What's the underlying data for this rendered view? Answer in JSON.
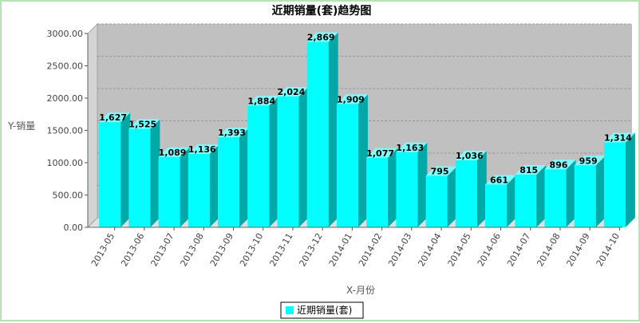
{
  "chart_data": {
    "type": "bar",
    "title": "近期销量(套)趋势图",
    "xlabel": "X-月份",
    "ylabel": "Y-销量",
    "ylim": [
      0,
      3000
    ],
    "yticks": [
      "0.00",
      "500.00",
      "1000.00",
      "1500.00",
      "2000.00",
      "2500.00",
      "3000.00"
    ],
    "categories": [
      "2013-05",
      "2013-06",
      "2013-07",
      "2013-08",
      "2013-09",
      "2013-10",
      "2013-11",
      "2013-12",
      "2014-01",
      "2014-02",
      "2014-03",
      "2014-04",
      "2014-05",
      "2014-06",
      "2014-07",
      "2014-08",
      "2014-09",
      "2014-10"
    ],
    "values": [
      1627,
      1525,
      1089,
      1136,
      1393,
      1884,
      2024,
      2869,
      1909,
      1077,
      1163,
      795,
      1036,
      661,
      815,
      896,
      959,
      1314
    ],
    "data_labels": [
      "1,627",
      "1,525",
      "1,089",
      "1,136",
      "1,393",
      "1,884",
      "2,024",
      "2,869",
      "1,909",
      "1,077",
      "1,163",
      "795",
      "1,036",
      "661",
      "815",
      "896",
      "959",
      "1,314"
    ],
    "series": [
      {
        "name": "近期销量(套)"
      }
    ],
    "grid": true,
    "legend": "bottom-center",
    "colors": {
      "bar_front": "#00ffff",
      "bar_side": "#00a8a8",
      "bar_top": "#80ffff",
      "plot_back": "#c0c0c0",
      "plot_side": "#d4d4d4",
      "plot_floor": "#e0e0e0",
      "grid": "#8a8a8a"
    }
  }
}
